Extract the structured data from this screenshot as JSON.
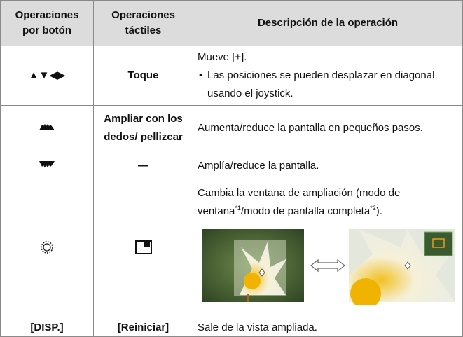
{
  "table": {
    "header": [
      "Operaciones por botón",
      "Operaciones táctiles",
      "Descripción de la operación"
    ],
    "rows": [
      {
        "button": "▲▼◀▶",
        "touch": "Toque",
        "description": [
          "Mueve [+].",
          "Las posiciones se pueden desplazar en diagonal usando el joystick."
        ]
      },
      {
        "touch": "Ampliar con los dedos/ pellizcar",
        "description": [
          "Aumenta/reduce la pantalla en pequeños pasos."
        ]
      },
      {
        "touch": "—",
        "description": [
          "Amplía/reduce la pantalla."
        ]
      },
      {
        "description": [
          "Cambia la ventana de ampliación (modo de ventana",
          "*1",
          "/modo de pantalla completa",
          "*2",
          ")."
        ]
      },
      {
        "button": "[DISP.]",
        "touch": "[Reiniciar]",
        "description": [
          "Sale de la vista ampliada."
        ]
      }
    ]
  }
}
